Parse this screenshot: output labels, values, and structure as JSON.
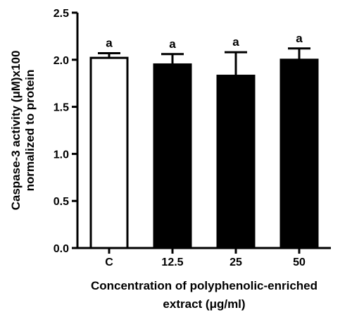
{
  "chart_data": {
    "type": "bar",
    "categories": [
      "C",
      "12.5",
      "25",
      "50"
    ],
    "values": [
      2.02,
      1.95,
      1.83,
      2.0
    ],
    "errors": [
      0.05,
      0.11,
      0.25,
      0.12
    ],
    "significance": [
      "a",
      "a",
      "a",
      "a"
    ],
    "bar_fills": [
      "#ffffff",
      "#000000",
      "#000000",
      "#000000"
    ],
    "ylim": [
      0.0,
      2.5
    ],
    "yticks": [
      "0.0",
      "0.5",
      "1.0",
      "1.5",
      "2.0",
      "2.5"
    ],
    "xlabel_line1": "Concentration of polyphenolic-enriched",
    "xlabel_line2": "extract (μg/ml)",
    "ylabel_line1": "Caspase-3 activity (μM)x100",
    "ylabel_line2": "normalized to protein",
    "grid": false
  }
}
